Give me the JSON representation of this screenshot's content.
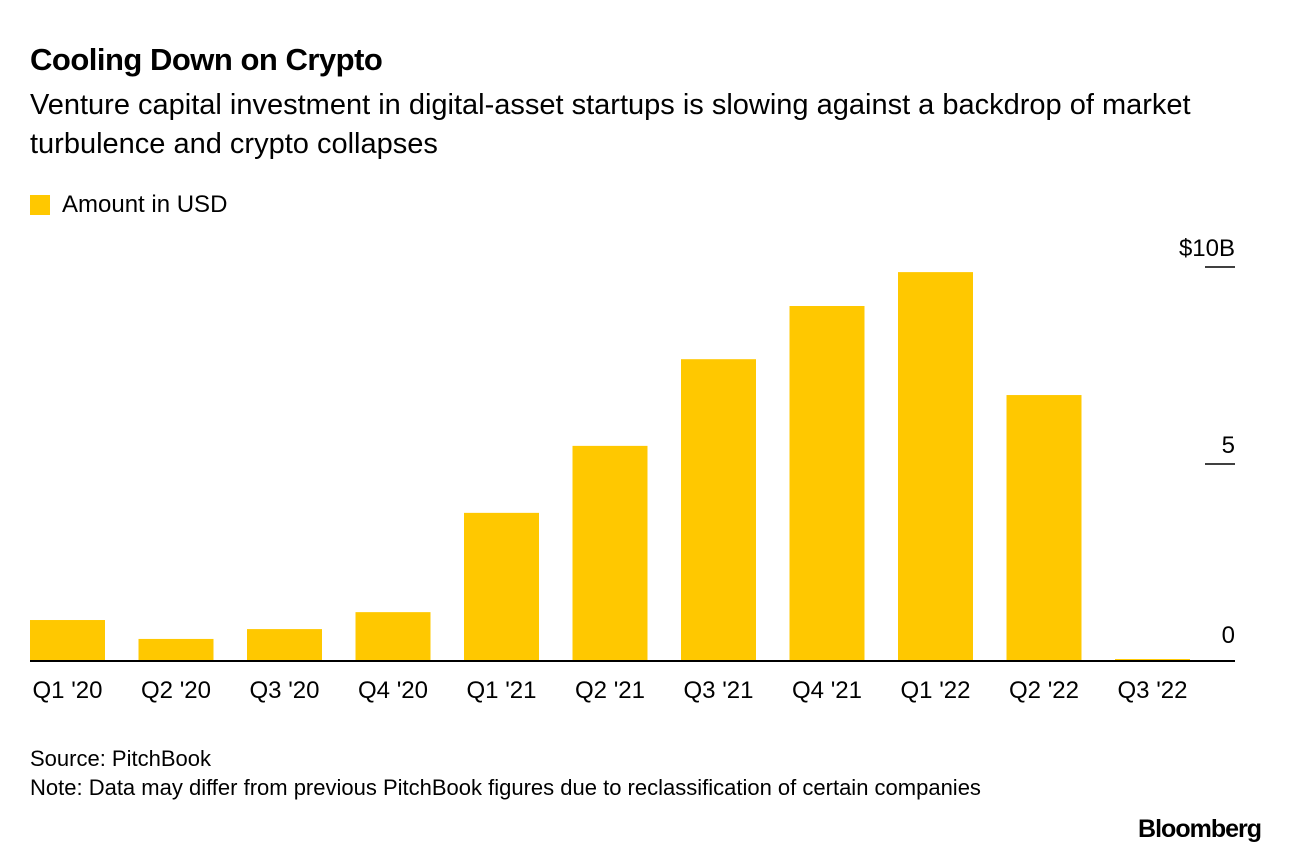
{
  "chart_data": {
    "type": "bar",
    "title": "Cooling Down on Crypto",
    "subtitle": "Venture capital investment in digital-asset startups is slowing against a backdrop of market turbulence and crypto collapses",
    "categories": [
      "Q1 '20",
      "Q2 '20",
      "Q3 '20",
      "Q4 '20",
      "Q1 '21",
      "Q2 '21",
      "Q3 '21",
      "Q4 '21",
      "Q1 '22",
      "Q2 '22",
      "Q3 '22"
    ],
    "series": [
      {
        "name": "Amount in USD",
        "values": [
          1.04,
          0.56,
          0.81,
          1.24,
          3.76,
          5.46,
          7.66,
          9.01,
          9.87,
          6.75,
          0.05
        ],
        "color": "#ffc800"
      }
    ],
    "ylim": [
      0,
      10
    ],
    "yticks": [
      {
        "value": 0,
        "label": "0"
      },
      {
        "value": 5,
        "label": "5"
      },
      {
        "value": 10,
        "label": "$10B"
      }
    ],
    "y_axis_position": "right",
    "grid": false,
    "legend_position": "top-left",
    "xlabel": "",
    "ylabel": ""
  },
  "footer": {
    "source": "Source: PitchBook",
    "note": "Note: Data may differ from previous PitchBook figures due to reclassification of certain companies",
    "logo": "Bloomberg"
  }
}
